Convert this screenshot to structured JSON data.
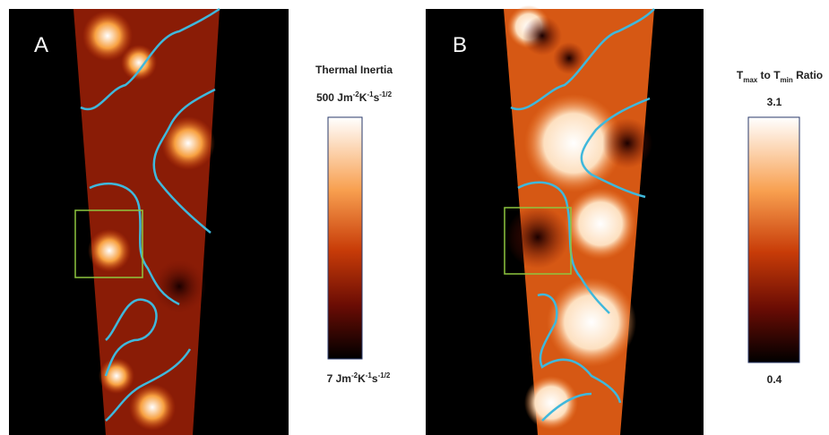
{
  "panels": [
    {
      "label": "A",
      "colorbar": {
        "title": [
          "Thermal Inertia"
        ],
        "max": [
          "500 Jm",
          "-2",
          "K",
          "-1",
          "s",
          "-1/2"
        ],
        "min": [
          "7 Jm",
          "-2",
          "K",
          "-1",
          "s",
          "-1/2"
        ]
      }
    },
    {
      "label": "B",
      "colorbar": {
        "title": [
          "T",
          "max",
          " to T",
          "min",
          " Ratio"
        ],
        "max": [
          "3.1"
        ],
        "min": [
          "0.4"
        ]
      }
    }
  ]
}
